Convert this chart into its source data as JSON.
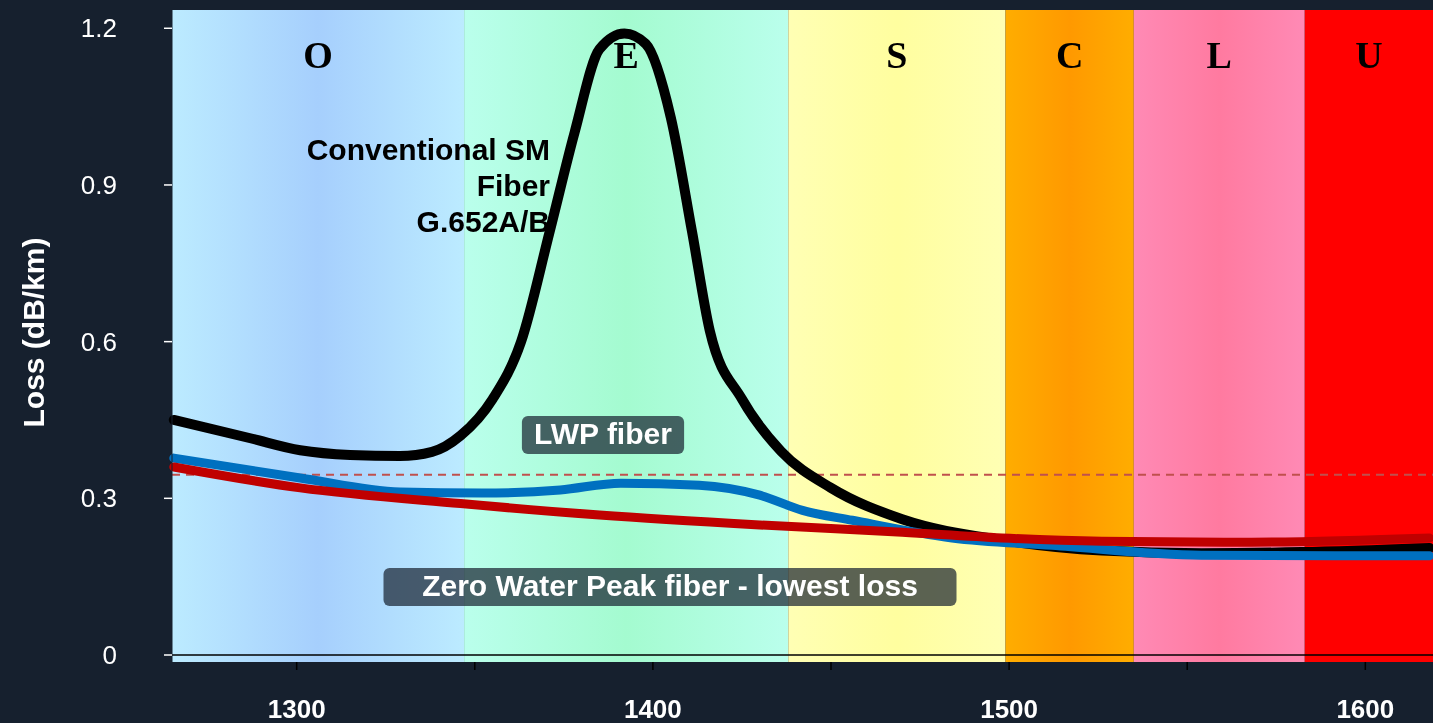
{
  "chart_data": {
    "type": "line",
    "ylabel": "Loss (dB/km)",
    "xlim": [
      1265,
      1619
    ],
    "ylim": [
      0,
      1.235
    ],
    "xticks": [
      1300,
      {
        "value": 1350,
        "label": null
      },
      1400,
      {
        "value": 1450,
        "label": null
      },
      1500,
      {
        "value": 1550,
        "label": null
      },
      1600
    ],
    "yticks": [
      0,
      0.3,
      0.6,
      0.9,
      1.2
    ],
    "grid": false,
    "bands": [
      {
        "axis": "x",
        "from": 1265,
        "to": 1347,
        "label": "O",
        "color": "#a6cffd"
      },
      {
        "axis": "x",
        "from": 1347,
        "to": 1438,
        "label": "E",
        "color": "#a4fbd0"
      },
      {
        "axis": "x",
        "from": 1438,
        "to": 1499,
        "label": "S",
        "color": "#fffe9f"
      },
      {
        "axis": "x",
        "from": 1499,
        "to": 1535,
        "label": "C",
        "color": "#ff9900"
      },
      {
        "axis": "x",
        "from": 1535,
        "to": 1583,
        "label": "L",
        "color": "#ff7aa0"
      },
      {
        "axis": "x",
        "from": 1583,
        "to": 1619,
        "label": "U",
        "color": "#ff0000"
      }
    ],
    "ref_lines": [
      {
        "axis": "y",
        "value": 0.345,
        "color": "#c0504d",
        "line_style": "dashed"
      }
    ],
    "series": [
      {
        "name": "Conventional SM\nFiber\nG.652A/B",
        "color": "#000000",
        "x": [
          1265.5,
          1287,
          1301,
          1315,
          1329,
          1338,
          1346,
          1355,
          1363,
          1371,
          1378,
          1385,
          1392,
          1398,
          1405,
          1411,
          1416,
          1425,
          1436,
          1450,
          1470,
          1498,
          1526,
          1554,
          1582,
          1618
        ],
        "values": [
          0.45,
          0.415,
          0.392,
          0.383,
          0.381,
          0.389,
          0.42,
          0.49,
          0.6,
          0.81,
          1.0,
          1.16,
          1.19,
          1.17,
          1.03,
          0.81,
          0.62,
          0.49,
          0.39,
          0.32,
          0.26,
          0.22,
          0.2,
          0.195,
          0.197,
          0.205
        ]
      },
      {
        "name": "LWP fiber",
        "color": "#0070c0",
        "x": [
          1265.5,
          1301,
          1329,
          1352,
          1374,
          1391,
          1413,
          1430,
          1442,
          1456,
          1484,
          1512,
          1554,
          1618
        ],
        "values": [
          0.377,
          0.339,
          0.312,
          0.31,
          0.316,
          0.329,
          0.325,
          0.306,
          0.277,
          0.258,
          0.224,
          0.21,
          0.191,
          0.19
        ]
      },
      {
        "name": "Zero Water Peak fiber - lowest loss",
        "color": "#c00000",
        "x": [
          1265.5,
          1301,
          1346,
          1385,
          1430,
          1470,
          1498,
          1526,
          1568,
          1618
        ],
        "values": [
          0.36,
          0.32,
          0.29,
          0.268,
          0.249,
          0.235,
          0.224,
          0.218,
          0.216,
          0.224
        ]
      }
    ]
  }
}
